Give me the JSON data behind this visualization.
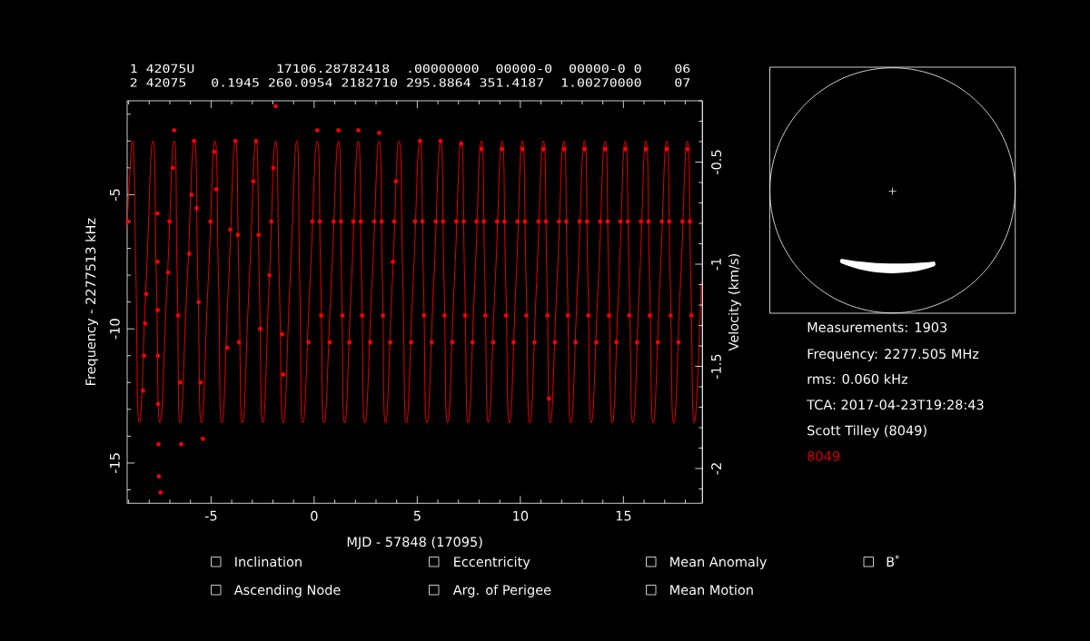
{
  "chart_data": {
    "type": "line",
    "title": "1 42075U          17106.28782418  .00000000  00000-0  00000-0 0    06",
    "subtitle": "2 42075   0.1945 260.0954 2182710 295.8864 351.4187  1.00270000    07",
    "xlabel": "MJD - 57848 (17095)",
    "ylabel": "Frequency - 2277513 kHz",
    "y2label": "Velocity (km/s)",
    "xlim": [
      -9.07,
      18.83
    ],
    "xticks": [
      -5,
      0,
      5,
      10,
      15
    ],
    "ylim": [
      -16.5,
      -1.5
    ],
    "yticks": [
      -15,
      -10,
      -5
    ],
    "y2lim": [
      -2.17,
      -0.2
    ],
    "y2ticks": [
      -2,
      -1.5,
      -1,
      -0.5
    ],
    "series": [
      {
        "color": "#ff0000",
        "x": [
          -9.07,
          -8.96,
          -8.8,
          -8.72,
          -8.64,
          -8.48,
          -8.15,
          -7.82,
          -7.65,
          -7.48,
          -7.13,
          -6.79,
          -6.64,
          -6.5,
          -6.16,
          -5.81,
          -5.64,
          -5.47,
          -5.14,
          -4.81,
          -4.64,
          -4.48,
          -4.15,
          -3.82,
          -3.65,
          -3.48,
          -3.15,
          -2.82,
          -2.66,
          -2.49,
          -2.18,
          -1.87,
          -1.69,
          -1.5,
          -1.17,
          -0.84,
          -0.7,
          -0.55,
          -0.2,
          0.15,
          0.32,
          0.48,
          0.83,
          1.18,
          1.33,
          1.48,
          1.81,
          2.14,
          2.3,
          2.46,
          2.81,
          3.15,
          3.31,
          3.46,
          3.79,
          4.12,
          4.3,
          4.47,
          4.8,
          5.13,
          5.3,
          5.47,
          5.8,
          6.13,
          6.3,
          6.47,
          6.8,
          7.13,
          7.3,
          7.47,
          7.79,
          8.11,
          8.28,
          8.45,
          8.78,
          9.11,
          9.29,
          9.47,
          9.79,
          10.1,
          10.28,
          10.46,
          10.79,
          11.12,
          11.29,
          11.45,
          11.78,
          12.11,
          12.28,
          12.45,
          12.78,
          13.11,
          13.28,
          13.44,
          13.78,
          14.11,
          14.29,
          14.46,
          14.78,
          15.09,
          15.28,
          15.46,
          15.78,
          16.09,
          16.27,
          16.44,
          16.77,
          17.1,
          17.27,
          17.44,
          17.77,
          18.1,
          18.27,
          18.44,
          18.77
        ],
        "values": [
          -6.3,
          -4.4,
          -3.0,
          -4.4,
          -8.25,
          -13.5,
          -8.25,
          -3.0,
          -8.25,
          -13.5,
          -8.25,
          -3.0,
          -8.25,
          -13.5,
          -8.25,
          -3.0,
          -8.25,
          -13.5,
          -8.25,
          -3.0,
          -8.25,
          -13.5,
          -8.25,
          -3.0,
          -8.25,
          -13.5,
          -8.25,
          -3.0,
          -8.25,
          -13.5,
          -8.25,
          -3.0,
          -8.25,
          -13.5,
          -8.25,
          -3.0,
          -8.25,
          -13.5,
          -8.25,
          -3.0,
          -8.25,
          -13.5,
          -8.25,
          -3.0,
          -8.25,
          -13.5,
          -8.25,
          -3.0,
          -8.25,
          -13.5,
          -8.25,
          -3.0,
          -8.25,
          -13.5,
          -8.25,
          -3.0,
          -8.25,
          -13.5,
          -8.25,
          -3.0,
          -8.25,
          -13.5,
          -8.25,
          -3.0,
          -8.25,
          -13.5,
          -8.25,
          -3.0,
          -8.25,
          -13.5,
          -8.25,
          -3.0,
          -8.25,
          -13.5,
          -8.25,
          -3.0,
          -8.25,
          -13.5,
          -8.25,
          -3.0,
          -8.25,
          -13.5,
          -8.25,
          -3.0,
          -8.25,
          -13.5,
          -8.25,
          -3.0,
          -8.25,
          -13.5,
          -8.25,
          -3.0,
          -8.25,
          -13.5,
          -8.25,
          -3.0,
          -8.25,
          -13.5,
          -8.25,
          -3.0,
          -8.25,
          -13.5,
          -8.25,
          -3.0,
          -8.25,
          -13.5,
          -8.25,
          -3.0,
          -8.25,
          -13.5,
          -8.25,
          -3.0,
          -8.25,
          -13.5,
          -8.25
        ]
      },
      {
        "type": "scatter",
        "color": "#ff0000",
        "marker": "circle",
        "x": [
          -9.04,
          -8.3,
          -8.25,
          -8.2,
          -8.15,
          -7.6,
          -7.6,
          -7.59,
          -7.58,
          -7.57,
          -7.55,
          -7.53,
          -7.45,
          -7.08,
          -7.01,
          -6.85,
          -6.79,
          -6.6,
          -6.5,
          -6.45,
          -6.06,
          -5.95,
          -5.83,
          -5.7,
          -5.6,
          -5.5,
          -5.4,
          -5.03,
          -4.85,
          -4.75,
          -4.22,
          -4.07,
          -3.82,
          -3.7,
          -3.65,
          -2.95,
          -2.82,
          -2.7,
          -2.62,
          -2.17,
          -2.08,
          -1.98,
          -1.87,
          -1.55,
          -1.5,
          -0.28,
          -0.09,
          0.15,
          0.27,
          0.34,
          0.75,
          0.94,
          1.18,
          1.3,
          1.37,
          1.71,
          1.9,
          2.14,
          2.26,
          2.33,
          2.72,
          2.91,
          3.15,
          3.27,
          3.34,
          3.69,
          3.82,
          3.88,
          3.96,
          4.7,
          4.89,
          5.13,
          5.25,
          5.32,
          5.7,
          5.89,
          6.13,
          6.25,
          6.32,
          6.7,
          6.89,
          7.13,
          7.25,
          7.32,
          7.68,
          7.87,
          8.11,
          8.23,
          8.3,
          8.68,
          8.87,
          9.11,
          9.23,
          9.3,
          9.67,
          9.86,
          10.1,
          10.22,
          10.29,
          10.69,
          10.88,
          11.12,
          11.24,
          11.31,
          11.39,
          11.68,
          11.87,
          12.11,
          12.23,
          12.3,
          12.68,
          12.87,
          13.11,
          13.23,
          13.3,
          13.68,
          13.87,
          14.11,
          14.23,
          14.3,
          14.66,
          14.85,
          15.09,
          15.21,
          15.28,
          15.66,
          15.85,
          16.09,
          16.21,
          16.28,
          16.67,
          16.86,
          17.1,
          17.22,
          17.29,
          17.67,
          17.86,
          18.1,
          18.22,
          18.29
        ],
        "values": [
          -6.0,
          -12.3,
          -11.0,
          -9.8,
          -8.7,
          -5.7,
          -7.5,
          -9.3,
          -11.0,
          -12.8,
          -14.3,
          -15.5,
          -16.1,
          -7.9,
          -6.0,
          -4.0,
          -2.6,
          -9.5,
          -12.0,
          -14.3,
          -7.2,
          -5.0,
          -3.0,
          -5.5,
          -9.0,
          -12.0,
          -14.1,
          -6.0,
          -3.4,
          -4.8,
          -10.7,
          -6.3,
          -3.0,
          -6.5,
          -10.5,
          -4.5,
          -3.0,
          -6.5,
          -10.0,
          -8.0,
          -6.0,
          -4.0,
          -1.7,
          -10.2,
          -11.7,
          -10.5,
          -6.0,
          -2.6,
          -6.0,
          -9.5,
          -10.5,
          -6.0,
          -2.6,
          -6.0,
          -9.5,
          -10.5,
          -6.0,
          -2.6,
          -6.0,
          -9.5,
          -10.5,
          -6.0,
          -2.7,
          -6.0,
          -9.5,
          -10.5,
          -7.5,
          -6.0,
          -4.5,
          -10.5,
          -6.0,
          -3.0,
          -6.0,
          -9.5,
          -10.5,
          -6.0,
          -3.0,
          -6.0,
          -9.5,
          -10.5,
          -6.0,
          -3.1,
          -6.0,
          -9.5,
          -10.5,
          -6.0,
          -3.3,
          -6.0,
          -9.5,
          -10.5,
          -6.0,
          -3.3,
          -6.0,
          -9.5,
          -10.5,
          -6.0,
          -3.3,
          -6.0,
          -9.5,
          -10.5,
          -6.0,
          -3.3,
          -6.0,
          -9.5,
          -12.6,
          -10.5,
          -6.0,
          -3.3,
          -6.0,
          -9.5,
          -10.5,
          -6.0,
          -3.3,
          -6.0,
          -9.5,
          -10.5,
          -6.0,
          -3.3,
          -6.0,
          -9.5,
          -10.5,
          -6.0,
          -3.3,
          -6.0,
          -9.5,
          -10.5,
          -6.0,
          -3.3,
          -6.0,
          -9.5,
          -10.5,
          -6.0,
          -3.3,
          -6.0,
          -9.5,
          -10.5,
          -6.0,
          -3.3,
          -6.0,
          -9.5
        ]
      }
    ],
    "annotations": [
      "Measurements: 1903",
      "Frequency: 2277.505 MHz",
      "rms: 0.060 kHz",
      "TCA: 2017-04-23T19:28:43",
      "Scott Tilley (8049)",
      "8049",
      "Inclination",
      "Eccentricity",
      "Mean Anomaly",
      "B$^{*}$",
      "Ascending Node",
      "Arg. of Perigee",
      "Mean Motion"
    ]
  }
}
